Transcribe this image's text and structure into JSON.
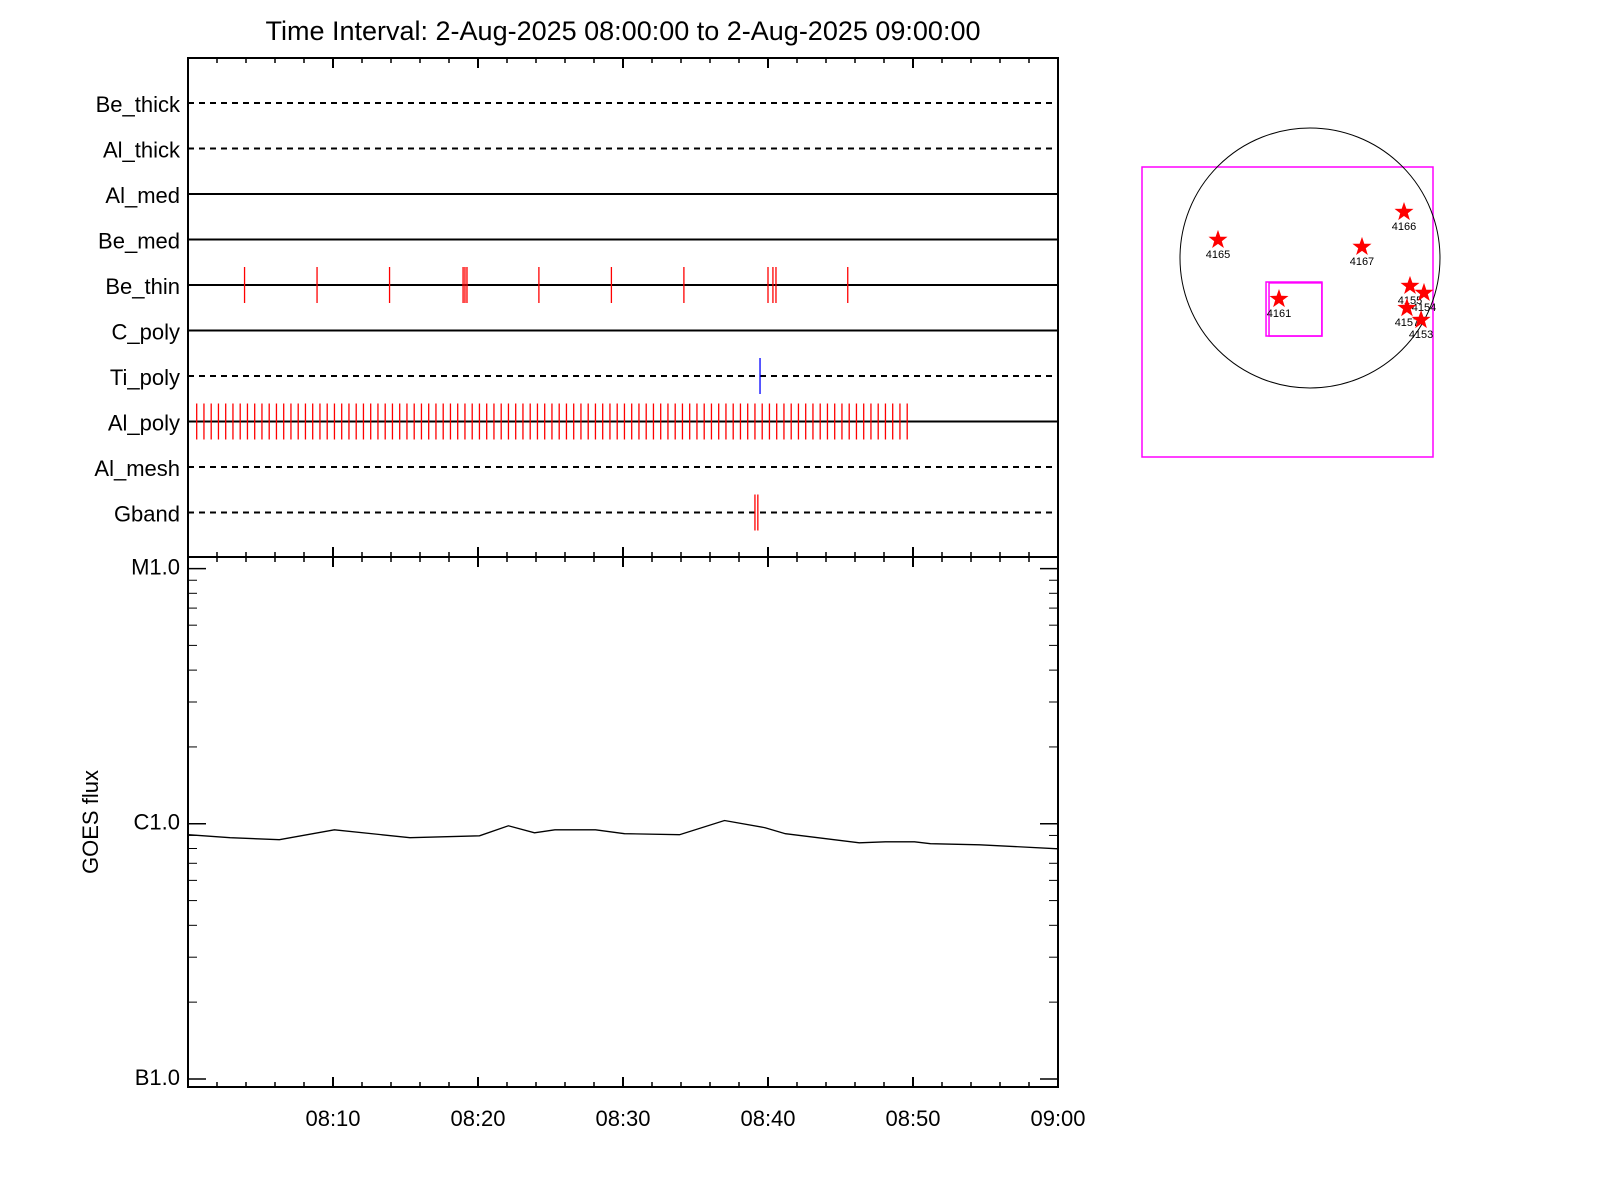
{
  "chart_data": [
    {
      "type": "event-strips",
      "title": "Time Interval:  2-Aug-2025 08:00:00 to  2-Aug-2025 09:00:00",
      "xlim": [
        0,
        60
      ],
      "xticks": [
        {
          "value": 10,
          "label": "08:10"
        },
        {
          "value": 20,
          "label": "08:20"
        },
        {
          "value": 30,
          "label": "08:30"
        },
        {
          "value": 40,
          "label": "08:40"
        },
        {
          "value": 50,
          "label": "08:50"
        },
        {
          "value": 60,
          "label": "09:00"
        }
      ],
      "xminorticks": [
        2,
        4,
        6,
        8,
        12,
        14,
        16,
        18,
        22,
        24,
        26,
        28,
        32,
        34,
        36,
        38,
        42,
        44,
        46,
        48,
        52,
        54,
        56,
        58
      ],
      "rows": [
        {
          "name": "Be_thick",
          "style": "dashed",
          "color": "#ff0000",
          "events": []
        },
        {
          "name": "Al_thick",
          "style": "dashed",
          "color": "#ff0000",
          "events": []
        },
        {
          "name": "Al_med",
          "style": "solid",
          "color": "#ff0000",
          "events": []
        },
        {
          "name": "Be_med",
          "style": "solid",
          "color": "#ff0000",
          "events": []
        },
        {
          "name": "Be_thin",
          "style": "solid",
          "color": "#ff0000",
          "events": [
            3.9,
            8.9,
            13.9,
            18.97,
            19.1,
            19.24,
            24.2,
            29.2,
            34.2,
            40.0,
            40.34,
            40.55,
            45.5
          ]
        },
        {
          "name": "C_poly",
          "style": "solid",
          "color": "#ff0000",
          "events": []
        },
        {
          "name": "Ti_poly",
          "style": "dashed",
          "color": "#0000ff",
          "events": [
            39.45
          ]
        },
        {
          "name": "Al_poly",
          "style": "solid",
          "color": "#ff0000",
          "events": [
            0.6,
            1.1,
            1.6,
            2.1,
            2.6,
            3.1,
            3.6,
            4.1,
            4.6,
            5.1,
            5.6,
            6.1,
            6.6,
            7.1,
            7.6,
            8.1,
            8.6,
            9.1,
            9.6,
            10.1,
            10.6,
            11.1,
            11.6,
            12.1,
            12.6,
            13.1,
            13.6,
            14.1,
            14.6,
            15.1,
            15.6,
            16.1,
            16.6,
            17.1,
            17.6,
            18.1,
            18.6,
            19.1,
            19.6,
            20.1,
            20.6,
            21.1,
            21.6,
            22.1,
            22.6,
            23.1,
            23.6,
            24.1,
            24.6,
            25.1,
            25.6,
            26.1,
            26.6,
            27.1,
            27.6,
            28.1,
            28.6,
            29.1,
            29.6,
            30.1,
            30.6,
            31.1,
            31.6,
            32.1,
            32.6,
            33.1,
            33.6,
            34.1,
            34.6,
            35.1,
            35.6,
            36.1,
            36.6,
            37.1,
            37.6,
            38.1,
            38.6,
            39.1,
            39.6,
            40.1,
            40.6,
            41.1,
            41.6,
            42.1,
            42.6,
            43.1,
            43.6,
            44.1,
            44.6,
            45.1,
            45.6,
            46.1,
            46.6,
            47.1,
            47.6,
            48.1,
            48.6,
            49.1,
            49.6
          ]
        },
        {
          "name": "Al_mesh",
          "style": "dashed",
          "color": "#ff0000",
          "events": []
        },
        {
          "name": "Gband",
          "style": "dashed",
          "color": "#ff0000",
          "events": [
            39.1,
            39.3
          ]
        }
      ]
    },
    {
      "type": "line",
      "ylabel": "GOES flux",
      "log": true,
      "color": "#000000",
      "xlim": [
        0,
        60
      ],
      "ylim": [
        9.3e-08,
        1.11e-05
      ],
      "yticks": [
        {
          "value": 1e-07,
          "label": "B1.0"
        },
        {
          "value": 1e-06,
          "label": "C1.0"
        },
        {
          "value": 1e-05,
          "label": "M1.0"
        }
      ],
      "yminorticks": [
        2e-07,
        3e-07,
        4e-07,
        5e-07,
        6e-07,
        7e-07,
        8e-07,
        9e-07,
        2e-06,
        3e-06,
        4e-06,
        5e-06,
        6e-06,
        7e-06,
        8e-06,
        9e-06
      ],
      "x": [
        0,
        2.9,
        6.3,
        10.1,
        15.3,
        20.1,
        22.1,
        23.9,
        25.3,
        28.1,
        30.1,
        33.9,
        37.0,
        39.8,
        41.2,
        46.3,
        48.1,
        50.1,
        51.2,
        54.6,
        60
      ],
      "values": [
        9.06e-07,
        8.82e-07,
        8.66e-07,
        9.47e-07,
        8.82e-07,
        8.97e-07,
        9.82e-07,
        9.22e-07,
        9.47e-07,
        9.47e-07,
        9.14e-07,
        9.06e-07,
        1.03e-06,
        9.65e-07,
        9.14e-07,
        8.42e-07,
        8.5e-07,
        8.5e-07,
        8.35e-07,
        8.27e-07,
        7.98e-07
      ]
    },
    {
      "type": "sun-map",
      "xlim": [
        -1154,
        845
      ],
      "ylim": [
        -1367,
        625
      ],
      "radius": 893,
      "fov": [
        -302,
        -536,
        82,
        -165
      ],
      "regions": [
        {
          "name": "4165",
          "x": -632,
          "y": 124
        },
        {
          "name": "4167",
          "x": 357,
          "y": 76
        },
        {
          "name": "4166",
          "x": 646,
          "y": 316
        },
        {
          "name": "4161",
          "x": -213,
          "y": -282
        },
        {
          "name": "4155",
          "x": 687,
          "y": -192
        },
        {
          "name": "4154",
          "x": 783,
          "y": -240
        },
        {
          "name": "4157",
          "x": 666,
          "y": -344
        },
        {
          "name": "4153",
          "x": 763,
          "y": -426
        }
      ]
    }
  ]
}
